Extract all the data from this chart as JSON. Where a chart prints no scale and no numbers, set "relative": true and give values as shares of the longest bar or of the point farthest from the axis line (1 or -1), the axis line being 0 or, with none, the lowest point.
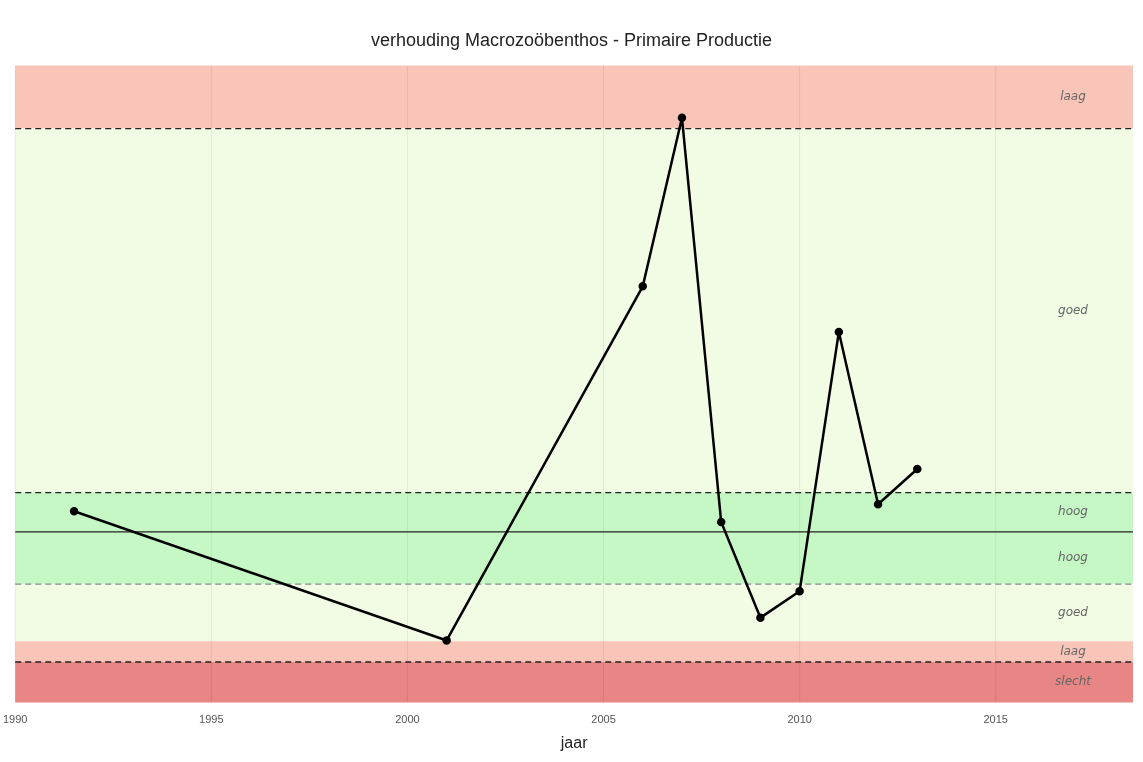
{
  "chart_data": {
    "type": "line",
    "title": "verhouding Macrozoöbenthos - Primaire Productie",
    "xlabel": "jaar",
    "relative": true,
    "x": [
      1991.5,
      2001,
      2006,
      2007,
      2008,
      2009,
      2010,
      2011,
      2012,
      2013
    ],
    "series": [
      {
        "color": "#000000",
        "values": [
          0.05,
          -0.262,
          0.593,
          1,
          0.024,
          -0.207,
          -0.143,
          0.483,
          0.067,
          0.152
        ]
      }
    ],
    "xlim": [
      1990,
      2018.5
    ],
    "xticks": [
      1990,
      1995,
      2000,
      2005,
      2010,
      2015
    ],
    "bands": [
      {
        "axis": "y",
        "from": 0.974,
        "to": 1.126,
        "label": "laag",
        "color": "#f9c5b9"
      },
      {
        "axis": "y",
        "from": 0.095,
        "to": 0.974,
        "label": "goed",
        "color": "#f2fce4"
      },
      {
        "axis": "y",
        "from": 0,
        "to": 0.095,
        "label": "hoog",
        "color": "#c6f8c6"
      },
      {
        "axis": "y",
        "from": -0.126,
        "to": 0,
        "label": "hoog",
        "color": "#c6f8c6"
      },
      {
        "axis": "y",
        "from": -0.264,
        "to": -0.126,
        "label": "goed",
        "color": "#f2fce4"
      },
      {
        "axis": "y",
        "from": -0.314,
        "to": -0.264,
        "label": "laag",
        "color": "#f9c5b9"
      },
      {
        "axis": "y",
        "from": -0.412,
        "to": -0.314,
        "label": "slecht",
        "color": "#e88585"
      }
    ],
    "ref_lines": [
      {
        "axis": "y",
        "value": 0.974,
        "color": "#222222",
        "line_style": "dashed"
      },
      {
        "axis": "y",
        "value": 0.095,
        "color": "#222222",
        "line_style": "dashed"
      },
      {
        "axis": "y",
        "value": 0,
        "color": "#222222",
        "line_style": "solid"
      },
      {
        "axis": "y",
        "value": -0.126,
        "color": "#888888",
        "line_style": "dashed"
      },
      {
        "axis": "y",
        "value": -0.314,
        "color": "#222222",
        "line_style": "dashed"
      }
    ],
    "grid": "x",
    "legend": false,
    "marker": "circle",
    "line_style": "solid",
    "tick_labels": "x"
  }
}
